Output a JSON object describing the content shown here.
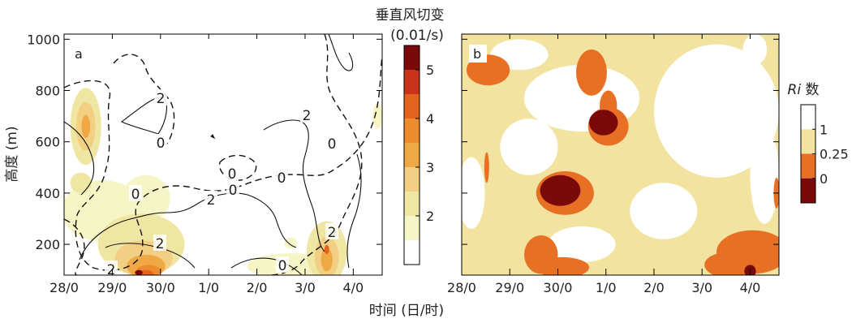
{
  "chart_data": [
    {
      "type": "heatmap",
      "panel_label": "a",
      "xlabel": "",
      "ylabel": "高度 (m)",
      "x_tick_labels": [
        "28/0",
        "29/0",
        "30/0",
        "1/0",
        "2/0",
        "3/0",
        "4/0"
      ],
      "x_ticks": [
        0,
        1,
        2,
        3,
        4,
        5,
        6
      ],
      "xlim": [
        0,
        6.6
      ],
      "y_tick_labels": [
        "200",
        "400",
        "600",
        "800",
        "1000"
      ],
      "y_ticks": [
        200,
        400,
        600,
        800,
        1000
      ],
      "ylim": [
        80,
        1020
      ],
      "colorbar": {
        "title_line1": "垂直风切变",
        "title_line2": "(0.01/s)",
        "tick_labels": [
          "2",
          "3",
          "4",
          "5"
        ],
        "ticks": [
          2,
          3,
          4,
          5
        ],
        "range": [
          1,
          5.5
        ],
        "bounds": [
          1,
          1.5,
          2,
          2.5,
          3,
          3.5,
          4,
          4.5,
          5,
          5.5
        ],
        "colors": [
          "#ffffff",
          "#f5f5c6",
          "#f0e6a4",
          "#f2cf83",
          "#f0a845",
          "#ec8c2c",
          "#e3631f",
          "#c9331c",
          "#7a0a0a"
        ]
      },
      "contour_labels": [
        "2",
        "0",
        "0",
        "0",
        "2",
        "0",
        "2",
        "0",
        "0",
        "2",
        "0",
        "2",
        "2"
      ],
      "blobs": [
        {
          "x": 0.45,
          "y": 660,
          "rx": 0.32,
          "ry": 150,
          "value": 2.0
        },
        {
          "x": 0.45,
          "y": 660,
          "rx": 0.2,
          "ry": 95,
          "value": 2.5
        },
        {
          "x": 0.45,
          "y": 660,
          "rx": 0.09,
          "ry": 45,
          "value": 3.2
        },
        {
          "x": 0.8,
          "y": 330,
          "rx": 0.85,
          "ry": 120,
          "value": 1.9
        },
        {
          "x": 1.7,
          "y": 380,
          "rx": 0.5,
          "ry": 90,
          "value": 1.8
        },
        {
          "x": 0.35,
          "y": 440,
          "rx": 0.22,
          "ry": 40,
          "value": 2.3
        },
        {
          "x": 1.6,
          "y": 200,
          "rx": 0.9,
          "ry": 120,
          "value": 2.0
        },
        {
          "x": 1.65,
          "y": 145,
          "rx": 0.6,
          "ry": 70,
          "value": 2.5
        },
        {
          "x": 1.7,
          "y": 115,
          "rx": 0.4,
          "ry": 45,
          "value": 3.0
        },
        {
          "x": 1.75,
          "y": 95,
          "rx": 0.25,
          "ry": 25,
          "value": 3.6
        },
        {
          "x": 1.7,
          "y": 85,
          "rx": 0.15,
          "ry": 15,
          "value": 4.2
        },
        {
          "x": 1.55,
          "y": 90,
          "rx": 0.08,
          "ry": 10,
          "value": 5.0
        },
        {
          "x": 4.7,
          "y": 115,
          "rx": 0.9,
          "ry": 50,
          "value": 1.9
        },
        {
          "x": 5.45,
          "y": 170,
          "rx": 0.42,
          "ry": 120,
          "value": 2.1
        },
        {
          "x": 5.45,
          "y": 150,
          "rx": 0.25,
          "ry": 80,
          "value": 2.7
        },
        {
          "x": 5.45,
          "y": 140,
          "rx": 0.12,
          "ry": 45,
          "value": 3.3
        },
        {
          "x": 5.45,
          "y": 180,
          "rx": 0.05,
          "ry": 18,
          "value": 4.0
        },
        {
          "x": 4.7,
          "y": 205,
          "rx": 0.13,
          "ry": 22,
          "value": 1.8
        },
        {
          "x": 6.5,
          "y": 700,
          "rx": 0.1,
          "ry": 50,
          "value": 1.8
        }
      ]
    },
    {
      "type": "heatmap",
      "panel_label": "b",
      "xlabel": "时间 (日/时)",
      "ylabel": "",
      "x_tick_labels": [
        "28/0",
        "29/0",
        "30/0",
        "1/0",
        "2/0",
        "3/0",
        "4/0"
      ],
      "x_ticks": [
        0,
        1,
        2,
        3,
        4,
        5,
        6
      ],
      "xlim": [
        0,
        6.6
      ],
      "ylim": [
        80,
        1020
      ],
      "colorbar": {
        "title_italic": "Ri",
        "title_rest": " 数",
        "tick_labels": [
          "1",
          "0.25",
          "0"
        ],
        "ticks": [
          1,
          0.25,
          0
        ],
        "levels": [
          "≥1",
          "0.25–1",
          "0–0.25",
          "<0"
        ],
        "colors": [
          "#ffffff",
          "#f2e4a0",
          "#e87025",
          "#7a0a0a"
        ]
      },
      "background_level": 1,
      "holes": [
        {
          "x": 2.5,
          "y": 770,
          "rx": 1.2,
          "ry": 130
        },
        {
          "x": 5.3,
          "y": 720,
          "rx": 1.3,
          "ry": 260
        },
        {
          "x": 4.2,
          "y": 330,
          "rx": 0.7,
          "ry": 110
        },
        {
          "x": 1.4,
          "y": 580,
          "rx": 0.6,
          "ry": 110
        },
        {
          "x": 0.2,
          "y": 400,
          "rx": 0.28,
          "ry": 140
        },
        {
          "x": 6.3,
          "y": 470,
          "rx": 0.3,
          "ry": 190
        },
        {
          "x": 2.5,
          "y": 200,
          "rx": 0.7,
          "ry": 70
        },
        {
          "x": 6.1,
          "y": 960,
          "rx": 0.25,
          "ry": 60
        },
        {
          "x": 1.2,
          "y": 940,
          "rx": 0.6,
          "ry": 60
        }
      ],
      "patches": [
        {
          "x": 0.55,
          "y": 880,
          "rx": 0.45,
          "ry": 60,
          "level": 2
        },
        {
          "x": 2.7,
          "y": 870,
          "rx": 0.32,
          "ry": 90,
          "level": 2
        },
        {
          "x": 3.05,
          "y": 740,
          "rx": 0.18,
          "ry": 60,
          "level": 2
        },
        {
          "x": 3.05,
          "y": 660,
          "rx": 0.42,
          "ry": 75,
          "level": 2
        },
        {
          "x": 2.95,
          "y": 675,
          "rx": 0.3,
          "ry": 50,
          "level": 3
        },
        {
          "x": 2.15,
          "y": 400,
          "rx": 0.6,
          "ry": 85,
          "level": 2
        },
        {
          "x": 2.05,
          "y": 410,
          "rx": 0.42,
          "ry": 60,
          "level": 3
        },
        {
          "x": 0.52,
          "y": 500,
          "rx": 0.05,
          "ry": 60,
          "level": 2
        },
        {
          "x": 1.65,
          "y": 160,
          "rx": 0.35,
          "ry": 75,
          "level": 2
        },
        {
          "x": 2.1,
          "y": 110,
          "rx": 0.55,
          "ry": 40,
          "level": 2
        },
        {
          "x": 6.05,
          "y": 170,
          "rx": 0.75,
          "ry": 85,
          "level": 2
        },
        {
          "x": 5.55,
          "y": 120,
          "rx": 0.5,
          "ry": 50,
          "level": 2
        },
        {
          "x": 6.0,
          "y": 95,
          "rx": 0.12,
          "ry": 25,
          "level": 3
        },
        {
          "x": 6.55,
          "y": 400,
          "rx": 0.06,
          "ry": 60,
          "level": 2
        }
      ]
    }
  ]
}
